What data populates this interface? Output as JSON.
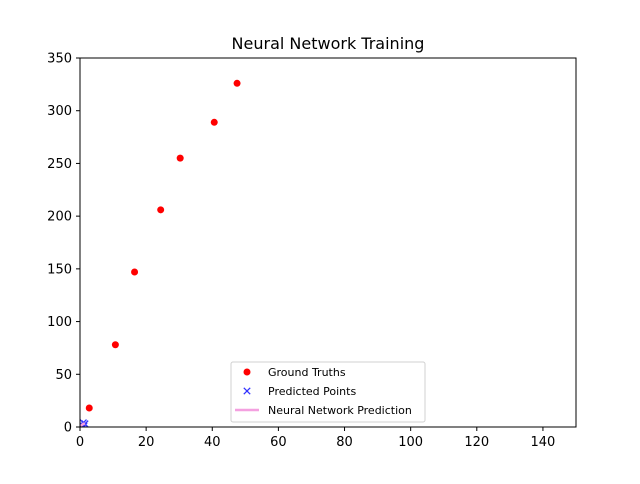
{
  "chart_data": {
    "type": "scatter",
    "title": "Neural Network Training",
    "xlabel": "",
    "ylabel": "",
    "xlim": [
      0,
      150
    ],
    "ylim": [
      0,
      350
    ],
    "x_ticks": [
      0,
      20,
      40,
      60,
      80,
      100,
      120,
      140
    ],
    "y_ticks": [
      0,
      50,
      100,
      150,
      200,
      250,
      300,
      350
    ],
    "grid": false,
    "legend_position": "lower-center",
    "series": [
      {
        "name": "Ground Truths",
        "kind": "scatter",
        "marker": "circle",
        "color": "#ff0000",
        "points": [
          {
            "x": 0.3,
            "y": 0.5
          },
          {
            "x": 2.8,
            "y": 18
          },
          {
            "x": 10.7,
            "y": 78
          },
          {
            "x": 16.5,
            "y": 147
          },
          {
            "x": 24.4,
            "y": 206
          },
          {
            "x": 30.3,
            "y": 255
          },
          {
            "x": 40.6,
            "y": 289
          },
          {
            "x": 47.5,
            "y": 326
          }
        ]
      },
      {
        "name": "Predicted Points",
        "kind": "scatter",
        "marker": "x",
        "color": "#3333ff",
        "points": [
          {
            "x": 0.5,
            "y": 2
          },
          {
            "x": 1.0,
            "y": 4
          },
          {
            "x": 1.5,
            "y": 3
          },
          {
            "x": 1.2,
            "y": 1
          }
        ]
      },
      {
        "name": "Neural Network Prediction",
        "kind": "line",
        "color": "#f4a0e0",
        "points": [
          {
            "x": 0.2,
            "y": 1
          },
          {
            "x": 0.8,
            "y": 2.5
          },
          {
            "x": 1.5,
            "y": 3.5
          }
        ]
      }
    ]
  }
}
